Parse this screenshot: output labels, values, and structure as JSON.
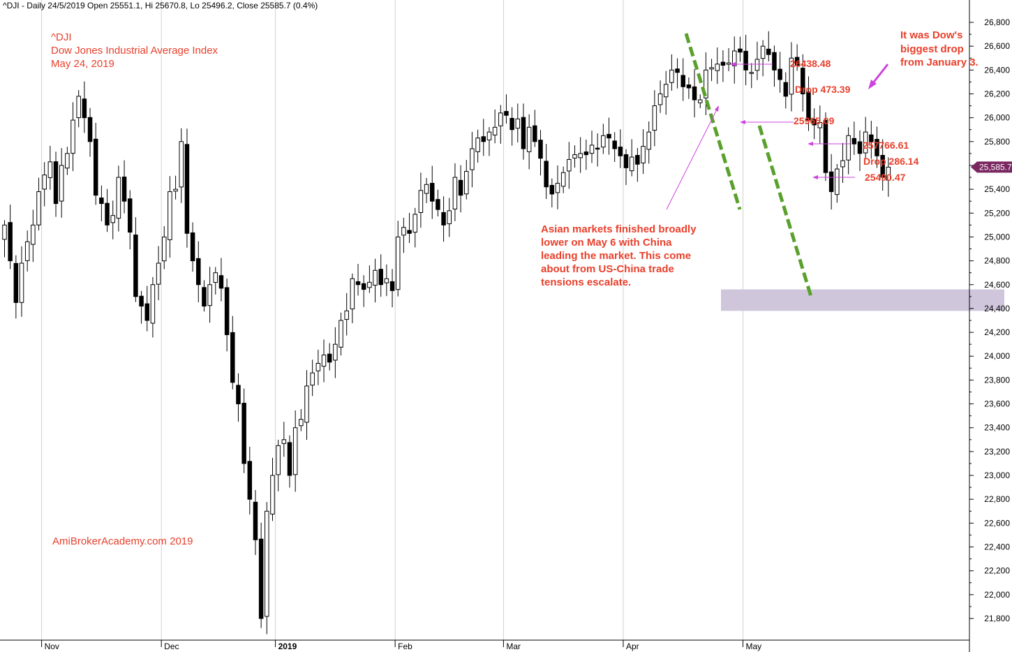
{
  "chart_data": {
    "type": "candlestick",
    "header": "^DJI - Daily 24/5/2019 Open 25551.1, Hi 25670.8, Lo 25496.2, Close 25585.7 (0.4%)",
    "title_lines": [
      "^DJI",
      "Dow Jones Industrial Average Index",
      "May 24, 2019"
    ],
    "watermark": "AmiBrokerAcademy.com  2019",
    "ylim": [
      21600,
      26900
    ],
    "y_ticks": [
      21800,
      22000,
      22200,
      22400,
      22600,
      22800,
      23000,
      23200,
      23400,
      23600,
      23800,
      24000,
      24200,
      24400,
      24600,
      24800,
      25000,
      25200,
      25400,
      25600,
      25800,
      26000,
      26200,
      26400,
      26600,
      26800
    ],
    "y_tick_labels": [
      "21,800",
      "22,000",
      "22,200",
      "22,400",
      "22,600",
      "22,800",
      "23,000",
      "23,200",
      "23,400",
      "23,600",
      "23,800",
      "24,000",
      "24,200",
      "24,400",
      "24,600",
      "24,800",
      "25,000",
      "25,200",
      "25,400",
      "25,600",
      "25,800",
      "26,000",
      "26,200",
      "26,400",
      "26,600",
      "26,800"
    ],
    "x_labels": [
      {
        "label": "Nov",
        "index": 7,
        "bold": false
      },
      {
        "label": "Dec",
        "index": 28,
        "bold": false
      },
      {
        "label": "2019",
        "index": 48,
        "bold": true
      },
      {
        "label": "Feb",
        "index": 69,
        "bold": false
      },
      {
        "label": "Mar",
        "index": 88,
        "bold": false
      },
      {
        "label": "Apr",
        "index": 109,
        "bold": false
      },
      {
        "label": "May",
        "index": 130,
        "bold": false
      }
    ],
    "grid_vertical": true,
    "last_close_label": "25,585.7",
    "last_close": 25585.7,
    "support_zone": [
      24380,
      24560
    ],
    "annotations": {
      "level_26438": "26438.48",
      "drop_1": "Drop 473.39",
      "level_25965": "25965.09",
      "level_25766": "257766.61",
      "drop_2": "Drop 286.14",
      "level_25490": "25490.47",
      "note_right": [
        "It was Dow's",
        "biggest drop",
        "from January 3."
      ],
      "note_asia": [
        "Asian markets finished broadly",
        "lower on May 6 with China",
        "leading the market. This come",
        "about from US-China trade",
        "tensions escalate."
      ]
    },
    "closes": [
      25100,
      24800,
      24450,
      24780,
      24960,
      25100,
      25380,
      25520,
      25630,
      25280,
      25600,
      25700,
      25980,
      26180,
      26000,
      25800,
      25350,
      25280,
      25100,
      25180,
      25500,
      25300,
      25040,
      24500,
      24420,
      24300,
      24600,
      24780,
      25000,
      25380,
      25400,
      25800,
      25030,
      24800,
      24600,
      24420,
      24600,
      24700,
      24570,
      24180,
      23780,
      23600,
      23100,
      22800,
      22460,
      21800,
      22700,
      23000,
      23250,
      23300,
      23000,
      23400,
      23470,
      23750,
      23860,
      23940,
      24010,
      23950,
      24100,
      24300,
      24380,
      24650,
      24600,
      24560,
      24620,
      24720,
      24600,
      24650,
      24550,
      25000,
      25080,
      25030,
      25190,
      25390,
      25440,
      25300,
      25230,
      25100,
      25220,
      25500,
      25350,
      25550,
      25740,
      25830,
      25800,
      25880,
      25920,
      26040,
      26020,
      25900,
      25990,
      25740,
      25920,
      25800,
      25660,
      25420,
      25360,
      25450,
      25540,
      25650,
      25690,
      25700,
      25690,
      25770,
      25740,
      25850,
      25830,
      25740,
      25680,
      25580,
      25670,
      25610,
      25760,
      25880,
      26100,
      26200,
      26280,
      26400,
      26380,
      26260,
      26250,
      26150,
      26150,
      26400,
      26420,
      26450,
      26440,
      26460,
      26560,
      26550,
      26400,
      26380,
      26490,
      26600,
      26530,
      26400,
      26320,
      26180,
      26500,
      26440,
      26200,
      25980,
      25940,
      25960,
      25540,
      25380,
      25570,
      25640,
      25850,
      25780,
      25700,
      25880,
      25800,
      25680,
      25500,
      25585.7
    ]
  }
}
